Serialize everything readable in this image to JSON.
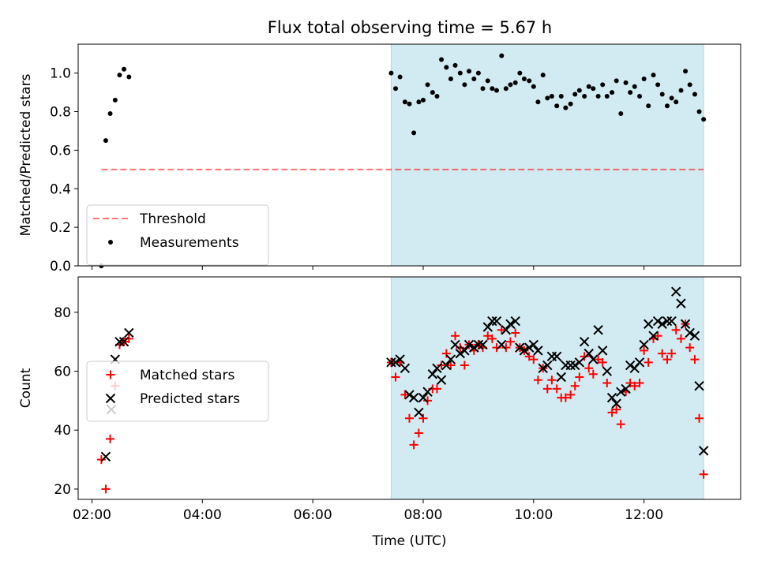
{
  "figure_title": "Flux total observing time = 5.67 h",
  "colors": {
    "shade": "#add8e6",
    "threshold": "#ff0000",
    "measurement": "#000000",
    "matched": "#ff0000",
    "predicted": "#000000"
  },
  "chart_data": [
    {
      "type": "scatter",
      "panel": "top",
      "title": "",
      "xlabel": "",
      "ylabel": "Matched/Predicted stars",
      "x_unit": "hours UTC",
      "xlim": [
        1.75,
        13.75
      ],
      "ylim": [
        0.0,
        1.15
      ],
      "yticks": [
        0.0,
        0.2,
        0.4,
        0.6,
        0.8,
        1.0
      ],
      "ytick_labels": [
        "0.0",
        "0.2",
        "0.4",
        "0.6",
        "0.8",
        "1.0"
      ],
      "shaded_region": [
        7.42,
        13.08
      ],
      "legend_position": "lower-left",
      "threshold": {
        "name": "Threshold",
        "value": 0.5,
        "x_range": [
          2.17,
          13.08
        ],
        "style": "dashed"
      },
      "series": [
        {
          "name": "Measurements",
          "marker": "dot",
          "points": [
            [
              2.17,
              0.0
            ],
            [
              2.25,
              0.65
            ],
            [
              2.33,
              0.79
            ],
            [
              2.42,
              0.86
            ],
            [
              2.5,
              0.99
            ],
            [
              2.58,
              1.02
            ],
            [
              2.67,
              0.98
            ],
            [
              7.42,
              1.0
            ],
            [
              7.5,
              0.92
            ],
            [
              7.58,
              0.98
            ],
            [
              7.67,
              0.85
            ],
            [
              7.75,
              0.84
            ],
            [
              7.83,
              0.69
            ],
            [
              7.92,
              0.85
            ],
            [
              8.0,
              0.86
            ],
            [
              8.08,
              0.94
            ],
            [
              8.17,
              0.9
            ],
            [
              8.25,
              0.88
            ],
            [
              8.33,
              1.07
            ],
            [
              8.42,
              1.03
            ],
            [
              8.5,
              0.97
            ],
            [
              8.58,
              1.04
            ],
            [
              8.67,
              1.0
            ],
            [
              8.75,
              0.94
            ],
            [
              8.83,
              1.01
            ],
            [
              8.92,
              0.97
            ],
            [
              9.0,
              1.0
            ],
            [
              9.08,
              0.92
            ],
            [
              9.17,
              0.96
            ],
            [
              9.25,
              0.92
            ],
            [
              9.33,
              0.91
            ],
            [
              9.42,
              1.09
            ],
            [
              9.5,
              0.92
            ],
            [
              9.58,
              0.94
            ],
            [
              9.67,
              0.95
            ],
            [
              9.75,
              1.0
            ],
            [
              9.83,
              0.97
            ],
            [
              9.92,
              0.96
            ],
            [
              10.0,
              0.93
            ],
            [
              10.08,
              0.85
            ],
            [
              10.17,
              0.99
            ],
            [
              10.25,
              0.87
            ],
            [
              10.33,
              0.88
            ],
            [
              10.42,
              0.83
            ],
            [
              10.5,
              0.88
            ],
            [
              10.58,
              0.82
            ],
            [
              10.67,
              0.84
            ],
            [
              10.75,
              0.89
            ],
            [
              10.83,
              0.91
            ],
            [
              10.92,
              0.88
            ],
            [
              11.0,
              0.93
            ],
            [
              11.08,
              0.92
            ],
            [
              11.17,
              0.88
            ],
            [
              11.25,
              0.94
            ],
            [
              11.33,
              0.88
            ],
            [
              11.42,
              0.9
            ],
            [
              11.5,
              0.96
            ],
            [
              11.58,
              0.79
            ],
            [
              11.67,
              0.95
            ],
            [
              11.75,
              0.9
            ],
            [
              11.83,
              0.93
            ],
            [
              11.92,
              0.88
            ],
            [
              12.0,
              0.97
            ],
            [
              12.08,
              0.83
            ],
            [
              12.17,
              0.99
            ],
            [
              12.25,
              0.94
            ],
            [
              12.33,
              0.89
            ],
            [
              12.42,
              0.83
            ],
            [
              12.5,
              0.87
            ],
            [
              12.58,
              0.85
            ],
            [
              12.67,
              0.91
            ],
            [
              12.75,
              1.01
            ],
            [
              12.83,
              0.94
            ],
            [
              12.92,
              0.89
            ],
            [
              13.0,
              0.8
            ],
            [
              13.08,
              0.76
            ]
          ]
        }
      ]
    },
    {
      "type": "scatter",
      "panel": "bottom",
      "title": "",
      "xlabel": "Time (UTC)",
      "ylabel": "Count",
      "x_unit": "hours UTC",
      "xlim": [
        1.75,
        13.75
      ],
      "ylim": [
        16.5,
        92
      ],
      "yticks": [
        20,
        40,
        60,
        80
      ],
      "ytick_labels": [
        "20",
        "40",
        "60",
        "80"
      ],
      "xticks": [
        2,
        4,
        6,
        8,
        10,
        12
      ],
      "xtick_labels": [
        "02:00",
        "04:00",
        "06:00",
        "08:00",
        "10:00",
        "12:00"
      ],
      "shaded_region": [
        7.42,
        13.08
      ],
      "legend_position": "center-left",
      "series": [
        {
          "name": "Matched stars",
          "marker": "plus",
          "points": [
            [
              2.17,
              30
            ],
            [
              2.25,
              20
            ],
            [
              2.33,
              37
            ],
            [
              2.42,
              55
            ],
            [
              2.5,
              69
            ],
            [
              2.58,
              70
            ],
            [
              2.67,
              71
            ],
            [
              7.42,
              63
            ],
            [
              7.5,
              58
            ],
            [
              7.58,
              63
            ],
            [
              7.67,
              52
            ],
            [
              7.75,
              44
            ],
            [
              7.83,
              35
            ],
            [
              7.92,
              39
            ],
            [
              8.0,
              44
            ],
            [
              8.08,
              50
            ],
            [
              8.17,
              54
            ],
            [
              8.25,
              54
            ],
            [
              8.33,
              62
            ],
            [
              8.42,
              66
            ],
            [
              8.5,
              62
            ],
            [
              8.58,
              72
            ],
            [
              8.67,
              68
            ],
            [
              8.75,
              62
            ],
            [
              8.83,
              69
            ],
            [
              8.92,
              67
            ],
            [
              9.0,
              69
            ],
            [
              9.08,
              68
            ],
            [
              9.17,
              72
            ],
            [
              9.25,
              71
            ],
            [
              9.33,
              68
            ],
            [
              9.42,
              74
            ],
            [
              9.5,
              68
            ],
            [
              9.58,
              70
            ],
            [
              9.67,
              73
            ],
            [
              9.75,
              68
            ],
            [
              9.83,
              67
            ],
            [
              9.92,
              65
            ],
            [
              10.0,
              64
            ],
            [
              10.08,
              57
            ],
            [
              10.17,
              61
            ],
            [
              10.25,
              54
            ],
            [
              10.33,
              57
            ],
            [
              10.42,
              54
            ],
            [
              10.5,
              51
            ],
            [
              10.58,
              51
            ],
            [
              10.67,
              52
            ],
            [
              10.75,
              55
            ],
            [
              10.83,
              58
            ],
            [
              10.92,
              65
            ],
            [
              11.0,
              61
            ],
            [
              11.08,
              59
            ],
            [
              11.17,
              64
            ],
            [
              11.25,
              63
            ],
            [
              11.33,
              56
            ],
            [
              11.42,
              46
            ],
            [
              11.5,
              47
            ],
            [
              11.58,
              42
            ],
            [
              11.67,
              53
            ],
            [
              11.75,
              56
            ],
            [
              11.83,
              55
            ],
            [
              11.92,
              56
            ],
            [
              12.0,
              67
            ],
            [
              12.08,
              63
            ],
            [
              12.17,
              71
            ],
            [
              12.25,
              72
            ],
            [
              12.33,
              66
            ],
            [
              12.42,
              64
            ],
            [
              12.5,
              66
            ],
            [
              12.58,
              74
            ],
            [
              12.67,
              71
            ],
            [
              12.75,
              76
            ],
            [
              12.83,
              68
            ],
            [
              12.92,
              64
            ],
            [
              13.0,
              44
            ],
            [
              13.08,
              25
            ]
          ]
        },
        {
          "name": "Predicted stars",
          "marker": "x",
          "points": [
            [
              2.25,
              31
            ],
            [
              2.35,
              47
            ],
            [
              2.42,
              64
            ],
            [
              2.5,
              70
            ],
            [
              2.58,
              70
            ],
            [
              2.67,
              73
            ],
            [
              7.42,
              63
            ],
            [
              7.5,
              63
            ],
            [
              7.58,
              64
            ],
            [
              7.67,
              61
            ],
            [
              7.75,
              52
            ],
            [
              7.83,
              51
            ],
            [
              7.92,
              46
            ],
            [
              8.0,
              51
            ],
            [
              8.08,
              53
            ],
            [
              8.17,
              59
            ],
            [
              8.25,
              61
            ],
            [
              8.33,
              57
            ],
            [
              8.42,
              62
            ],
            [
              8.5,
              64
            ],
            [
              8.58,
              69
            ],
            [
              8.67,
              66
            ],
            [
              8.75,
              67
            ],
            [
              8.83,
              69
            ],
            [
              8.92,
              68
            ],
            [
              9.0,
              69
            ],
            [
              9.08,
              69
            ],
            [
              9.17,
              75
            ],
            [
              9.25,
              77
            ],
            [
              9.33,
              77
            ],
            [
              9.42,
              69
            ],
            [
              9.5,
              74
            ],
            [
              9.58,
              76
            ],
            [
              9.67,
              77
            ],
            [
              9.75,
              68
            ],
            [
              9.83,
              67
            ],
            [
              9.92,
              68
            ],
            [
              10.0,
              69
            ],
            [
              10.08,
              67
            ],
            [
              10.17,
              61
            ],
            [
              10.25,
              62
            ],
            [
              10.33,
              65
            ],
            [
              10.42,
              65
            ],
            [
              10.5,
              58
            ],
            [
              10.58,
              62
            ],
            [
              10.67,
              62
            ],
            [
              10.75,
              62
            ],
            [
              10.83,
              63
            ],
            [
              10.92,
              70
            ],
            [
              11.0,
              66
            ],
            [
              11.08,
              64
            ],
            [
              11.17,
              74
            ],
            [
              11.25,
              67
            ],
            [
              11.33,
              60
            ],
            [
              11.42,
              51
            ],
            [
              11.5,
              49
            ],
            [
              11.58,
              53
            ],
            [
              11.67,
              54
            ],
            [
              11.75,
              62
            ],
            [
              11.83,
              61
            ],
            [
              11.92,
              63
            ],
            [
              12.0,
              69
            ],
            [
              12.08,
              76
            ],
            [
              12.17,
              72
            ],
            [
              12.25,
              77
            ],
            [
              12.33,
              76
            ],
            [
              12.42,
              77
            ],
            [
              12.5,
              77
            ],
            [
              12.58,
              87
            ],
            [
              12.67,
              83
            ],
            [
              12.75,
              76
            ],
            [
              12.83,
              73
            ],
            [
              12.92,
              72
            ],
            [
              13.0,
              55
            ],
            [
              13.08,
              33
            ]
          ]
        }
      ]
    }
  ]
}
